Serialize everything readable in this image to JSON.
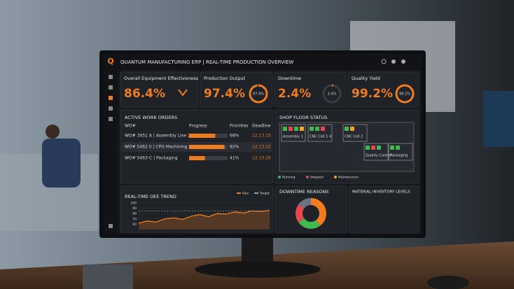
{
  "header": {
    "title": "QUANTUM MANUFACTURING ERP | REAL-TIME PRODUCTION OVERVIEW",
    "logo": "Q"
  },
  "kpis": [
    {
      "label": "Overall Equipment Effectiveness (OEE)",
      "value": 86.4,
      "value_label": "86.4%"
    },
    {
      "label": "Production Output",
      "value": 97.4,
      "value_label": "97.4%",
      "gauge_label": "97.4%"
    },
    {
      "label": "Downtime",
      "value": 2.4,
      "value_label": "2.4%",
      "gauge_label": "2.4%"
    },
    {
      "label": "Quality Yield",
      "value": 99.2,
      "value_label": "99.2%",
      "gauge_label": "99.2%"
    }
  ],
  "work_orders": {
    "title": "ACTIVE WORK ORDERS",
    "columns": [
      "WO#",
      "Progress",
      "Priorities",
      "Deadline"
    ],
    "rows": [
      {
        "order": "WO# 3451 A | Assembly Line 2",
        "progress": 68,
        "progress_label": "68%",
        "deadline": "12.13.15"
      },
      {
        "order": "WO# 5462 0 | CPG Machining",
        "progress": 92,
        "progress_label": "92%",
        "deadline": "12.13.22"
      },
      {
        "order": "WO# 5463-C | Packaging",
        "progress": 41,
        "progress_label": "41%",
        "deadline": "12.13.28"
      }
    ]
  },
  "shop_floor": {
    "title": "SHOP FLOOR STATUS",
    "legend": [
      {
        "name": "Running",
        "color": "#3fb950"
      },
      {
        "name": "Stopped",
        "color": "#e5484d"
      },
      {
        "name": "Maintenance",
        "color": "#f5a623"
      }
    ],
    "cells": [
      {
        "label": "Assembly 1",
        "machines": [
          "Running",
          "Stopped",
          "Running",
          "Maintenance"
        ]
      },
      {
        "label": "CNC Cell 1 4",
        "machines": [
          "Running",
          "Running",
          "Stopped"
        ]
      },
      {
        "label": "CNC Cell 2",
        "machines": [
          "Running",
          "Maintenance"
        ]
      },
      {
        "label": "Quality Control",
        "machines": [
          "Running",
          "Stopped",
          "Running"
        ]
      },
      {
        "label": "Packaging",
        "machines": [
          "Running",
          "Running"
        ]
      }
    ]
  },
  "trend": {
    "type": "line",
    "title": "REAL-TIME OEE TREND",
    "ylim": [
      50,
      100
    ],
    "yticks": [
      60,
      70,
      80,
      90,
      100
    ],
    "series": [
      {
        "name": "Oee",
        "color": "#f07c1e",
        "values": [
          62,
          66,
          64,
          70,
          72,
          69,
          75,
          78,
          74,
          80,
          79,
          83,
          81,
          85,
          84,
          86
        ]
      },
      {
        "name": "Target",
        "color": "#9aa0a6",
        "values": [
          85,
          85,
          85,
          85,
          85,
          85,
          85,
          85,
          85,
          85,
          85,
          85,
          85,
          85,
          85,
          85
        ]
      }
    ]
  },
  "downtime": {
    "type": "pie",
    "title": "DOWNTIME REASONS",
    "values": [
      40,
      25,
      20,
      15
    ],
    "colors": [
      "#f07c1e",
      "#3fb950",
      "#e5484d",
      "#6b7280"
    ]
  },
  "inventory": {
    "title": "MATERIAL INVENTORY LEVELS"
  }
}
